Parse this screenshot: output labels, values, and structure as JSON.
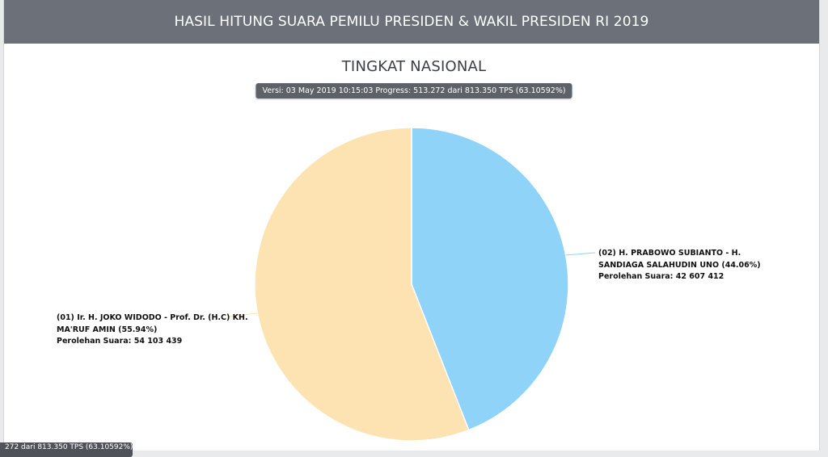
{
  "header": {
    "title": "HASIL HITUNG SUARA PEMILU PRESIDEN & WAKIL PRESIDEN RI 2019"
  },
  "chart": {
    "title": "TINGKAT NASIONAL",
    "version_text": "Versi: 03 May 2019 10:15:03 Progress: 513.272 dari 813.350 TPS (63.10592%)"
  },
  "footer_badge": {
    "text": "272 dari 813.350 TPS (63.10592%)"
  },
  "chart_data": {
    "type": "pie",
    "title": "TINGKAT NASIONAL",
    "slices": [
      {
        "label": "(02) H. PRABOWO SUBIANTO - H. SANDIAGA SALAHUDIN UNO (44.06%)",
        "votes_text": "Perolehan Suara: 42 607 412",
        "value": 42607412,
        "percent": 44.06,
        "color": "#8fd3f9"
      },
      {
        "label": "(01) Ir. H. JOKO WIDODO - Prof. Dr. (H.C) KH. MA'RUF AMIN (55.94%)",
        "votes_text": "Perolehan Suara: 54 103 439",
        "value": 54103439,
        "percent": 55.94,
        "color": "#fce3b1"
      }
    ]
  }
}
